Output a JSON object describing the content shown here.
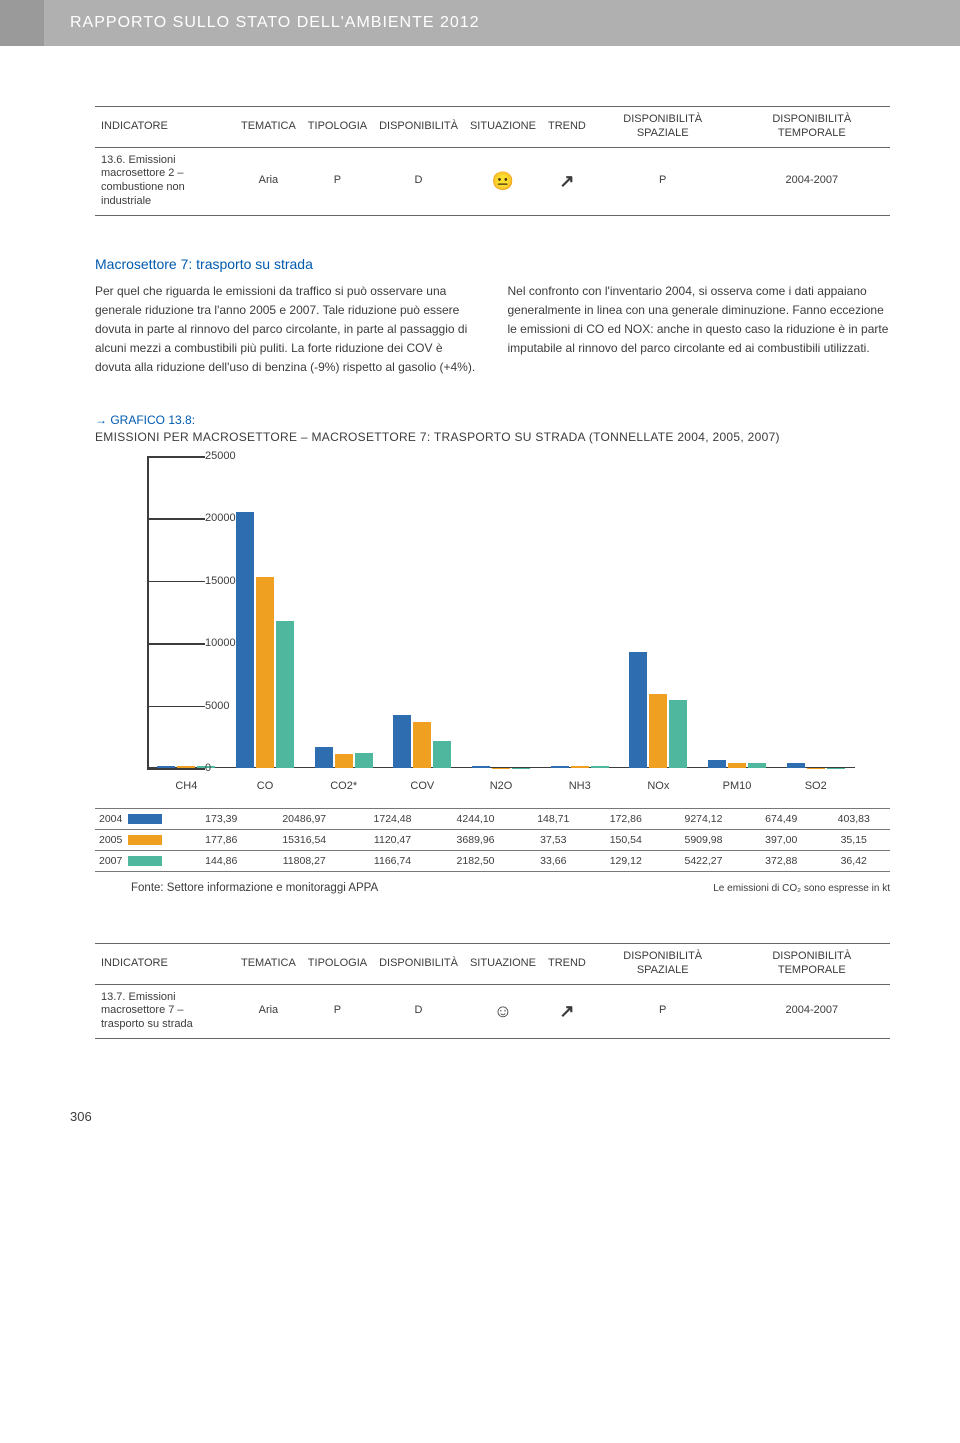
{
  "page": {
    "report_title": "RAPPORTO SULLO STATO DELL'AMBIENTE 2012",
    "number": "306"
  },
  "table1": {
    "headers": [
      "INDICATORE",
      "TEMATICA",
      "TIPOLOGIA",
      "DISPONIBILITÀ",
      "SITUAZIONE",
      "TREND",
      "DISPONIBILITÀ SPAZIALE",
      "DISPONIBILITÀ TEMPORALE"
    ],
    "row": {
      "indicatore": "13.6. Emissioni macrosettore 2 – combustione non industriale",
      "tematica": "Aria",
      "tipologia": "P",
      "disponibilita": "D",
      "situazione": "😐",
      "trend": "↗",
      "spaziale": "P",
      "temporale": "2004-2007"
    }
  },
  "section_title": "Macrosettore 7: trasporto su strada",
  "body": {
    "col1": "Per quel che riguarda le emissioni da traffico si può osservare una generale riduzione tra l'anno 2005 e 2007. Tale riduzione può essere dovuta in parte al rinnovo del parco circolante, in parte al passaggio di alcuni mezzi a combustibili più puliti. La forte riduzione dei COV è dovuta alla riduzione dell'uso di benzina (-9%) rispetto al gasolio (+4%).",
    "col2": "Nel confronto con l'inventario 2004, si osserva come i dati appaiano generalmente in linea con una generale diminuzione. Fanno eccezione le emissioni di CO ed NOX: anche in questo caso la riduzione è in parte imputabile al rinnovo del parco circolante ed ai combustibili utilizzati."
  },
  "chart": {
    "heading_id": "GRAFICO 13.8:",
    "heading_text": "EMISSIONI PER MACROSETTORE – MACROSETTORE 7: TRASPORTO SU STRADA (TONNELLATE 2004, 2005, 2007)",
    "type": "grouped-bar",
    "ylim": [
      0,
      25000
    ],
    "ytick_step": 5000,
    "colors": {
      "2004": "#2f6db1",
      "2005": "#f0a020",
      "2007": "#4fb79e",
      "axis": "#3c3c3c"
    },
    "categories": [
      "CH4",
      "CO",
      "CO2*",
      "COV",
      "N2O",
      "NH3",
      "NOx",
      "PM10",
      "SO2"
    ],
    "series": [
      {
        "year": "2004",
        "values": [
          173.39,
          20486.97,
          1724.48,
          4244.1,
          148.71,
          172.86,
          9274.12,
          674.49,
          403.83
        ]
      },
      {
        "year": "2005",
        "values": [
          177.86,
          15316.54,
          1120.47,
          3689.96,
          37.53,
          150.54,
          5909.98,
          397.0,
          35.15
        ]
      },
      {
        "year": "2007",
        "values": [
          144.86,
          11808.27,
          1166.74,
          2182.5,
          33.66,
          129.12,
          5422.27,
          372.88,
          36.42
        ]
      }
    ],
    "source": "Fonte: Settore informazione e monitoraggi APPA",
    "note": "Le emissioni di CO₂ sono espresse in kt"
  },
  "data_table": {
    "columns": [
      "",
      "CH4",
      "CO",
      "CO2*",
      "COV",
      "N2O",
      "NH3",
      "NOx",
      "PM10",
      "SO2"
    ],
    "rows": [
      [
        "2004",
        "173,39",
        "20486,97",
        "1724,48",
        "4244,10",
        "148,71",
        "172,86",
        "9274,12",
        "674,49",
        "403,83"
      ],
      [
        "2005",
        "177,86",
        "15316,54",
        "1120,47",
        "3689,96",
        "37,53",
        "150,54",
        "5909,98",
        "397,00",
        "35,15"
      ],
      [
        "2007",
        "144,86",
        "11808,27",
        "1166,74",
        "2182,50",
        "33,66",
        "129,12",
        "5422,27",
        "372,88",
        "36,42"
      ]
    ]
  },
  "table2": {
    "headers": [
      "INDICATORE",
      "TEMATICA",
      "TIPOLOGIA",
      "DISPONIBILITÀ",
      "SITUAZIONE",
      "TREND",
      "DISPONIBILITÀ SPAZIALE",
      "DISPONIBILITÀ TEMPORALE"
    ],
    "row": {
      "indicatore": "13.7. Emissioni macrosettore 7 – trasporto su strada",
      "tematica": "Aria",
      "tipologia": "P",
      "disponibilita": "D",
      "situazione": "☺",
      "trend": "↗",
      "spaziale": "P",
      "temporale": "2004-2007"
    }
  }
}
